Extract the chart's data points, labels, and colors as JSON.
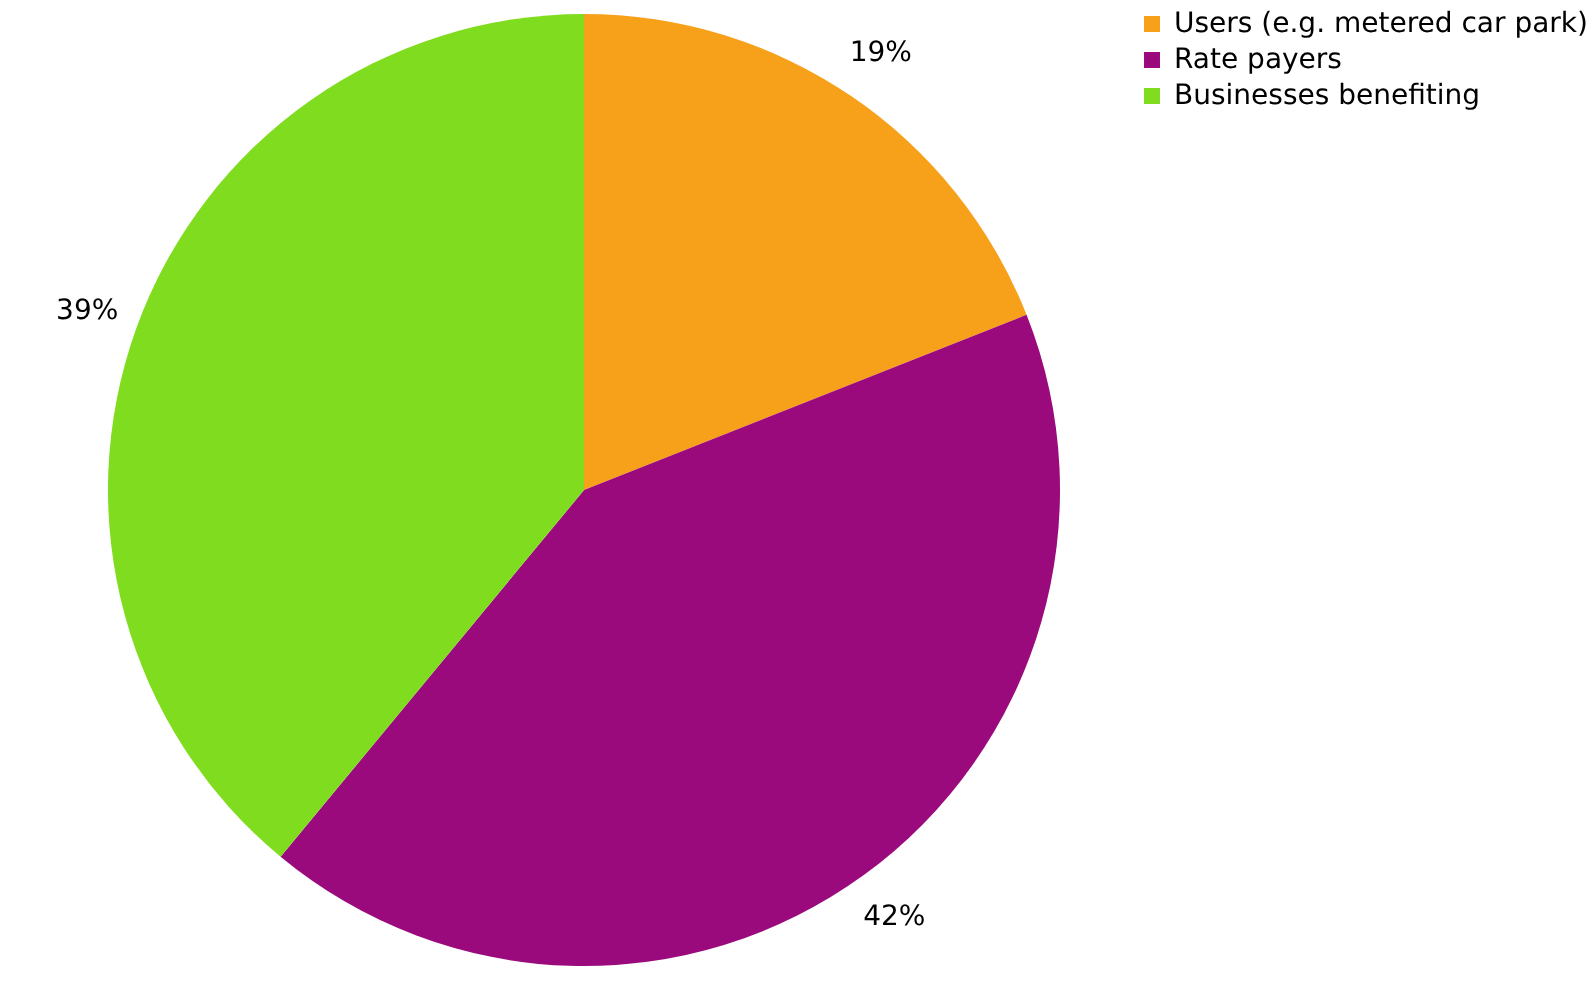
{
  "chart_data": {
    "type": "pie",
    "categories": [
      "Users (e.g. metered car park)",
      "Rate payers",
      "Businesses benefiting"
    ],
    "values": [
      19,
      42,
      39
    ],
    "colors": [
      "#f7a11a",
      "#9a0a7d",
      "#80dc1e"
    ],
    "value_labels": [
      "19%",
      "42%",
      "39%"
    ],
    "legend": "right"
  }
}
